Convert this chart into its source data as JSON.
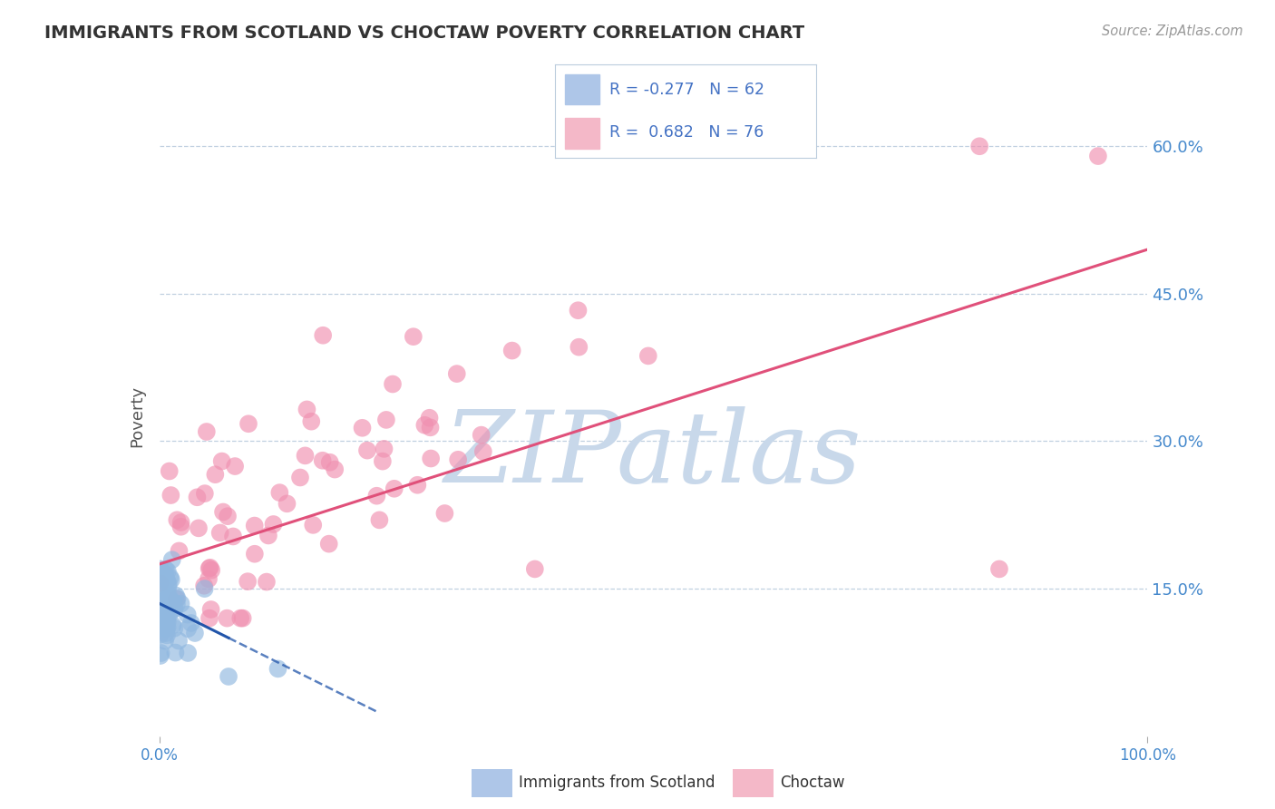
{
  "title": "IMMIGRANTS FROM SCOTLAND VS CHOCTAW POVERTY CORRELATION CHART",
  "source": "Source: ZipAtlas.com",
  "ylabel": "Poverty",
  "xlim": [
    0,
    1.0
  ],
  "ylim": [
    0,
    0.65
  ],
  "yticks": [
    0.15,
    0.3,
    0.45,
    0.6
  ],
  "ytick_labels": [
    "15.0%",
    "30.0%",
    "45.0%",
    "60.0%"
  ],
  "xtick_labels": [
    "0.0%",
    "100.0%"
  ],
  "series_scotland": {
    "color": "#90b8e0",
    "line_color": "#2255aa",
    "alpha": 0.65,
    "N": 62
  },
  "series_choctaw": {
    "color": "#f090b0",
    "line_color": "#e0507a",
    "alpha": 0.65,
    "N": 76
  },
  "legend": {
    "scotland_box_color": "#aec6e8",
    "choctaw_box_color": "#f4b8c8",
    "text_color": "#4472c4",
    "label_color": "#333333",
    "r_scotland": "-0.277",
    "n_scotland": "62",
    "r_choctaw": "0.682",
    "n_choctaw": "76"
  },
  "watermark": "ZIPatlas",
  "watermark_color": "#c8d8ea",
  "background_color": "#ffffff",
  "grid_color": "#c0d0e0",
  "title_color": "#333333",
  "axis_label_color": "#555555",
  "tick_label_color": "#4488cc",
  "bottom_legend": {
    "scotland_label": "Immigrants from Scotland",
    "choctaw_label": "Choctaw",
    "scotland_color": "#aec6e8",
    "choctaw_color": "#f4b8c8"
  }
}
